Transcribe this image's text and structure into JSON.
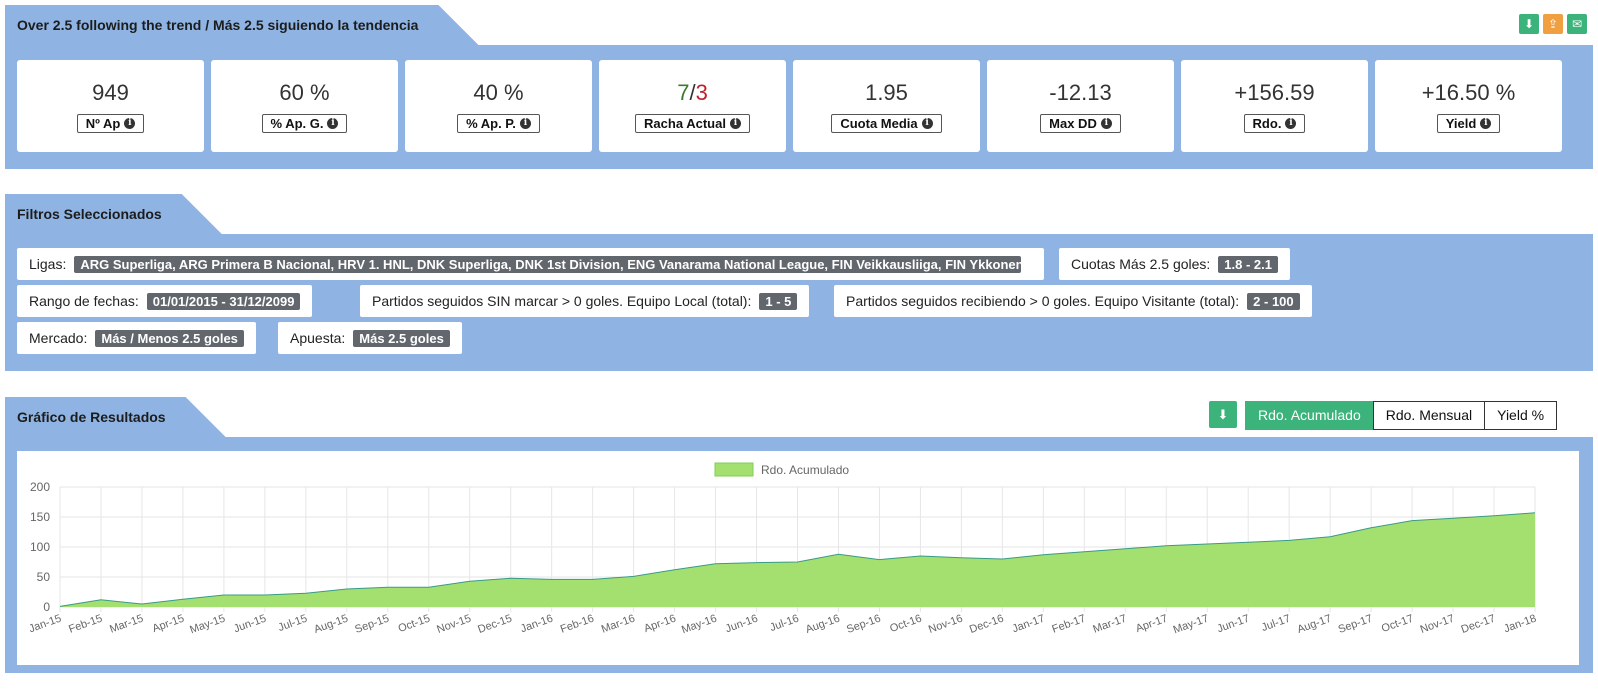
{
  "panel1": {
    "title": "Over 2.5 following the trend / Más 2.5 siguiendo la tendencia",
    "icons": [
      "download-icon",
      "share-icon",
      "envelope-icon"
    ],
    "stats": [
      {
        "value": "949",
        "label": "Nº Ap"
      },
      {
        "value": "60 %",
        "label": "% Ap. G."
      },
      {
        "value": "40 %",
        "label": "% Ap. P."
      },
      {
        "value_win": "7",
        "value_sep": "/",
        "value_loss": "3",
        "label": "Racha Actual"
      },
      {
        "value": "1.95",
        "label": "Cuota Media"
      },
      {
        "value": "-12.13",
        "label": "Max DD"
      },
      {
        "value": "+156.59",
        "label": "Rdo."
      },
      {
        "value": "+16.50 %",
        "label": "Yield"
      }
    ]
  },
  "panel2": {
    "title": "Filtros Seleccionados",
    "filters": [
      {
        "label": "Ligas:",
        "value": "ARG Superliga, ARG Primera B Nacional, HRV 1. HNL, DNK Superliga, DNK 1st Division, ENG Vanarama National League, FIN Veikkausliiga, FIN Ykkonen ..."
      },
      {
        "label": "Cuotas Más 2.5 goles:",
        "value": "1.8 - 2.1"
      },
      {
        "label": "Rango de fechas:",
        "value": "01/01/2015 - 31/12/2099"
      },
      {
        "label": "Partidos seguidos SIN marcar > 0 goles. Equipo Local (total):",
        "value": "1 - 5"
      },
      {
        "label": "Partidos seguidos recibiendo > 0 goles. Equipo Visitante (total):",
        "value": "2 - 100"
      },
      {
        "label": "Mercado:",
        "value": "Más / Menos 2.5 goles"
      },
      {
        "label": "Apuesta:",
        "value": "Más 2.5 goles"
      }
    ]
  },
  "panel3": {
    "title": "Gráfico de Resultados",
    "buttons": [
      "Rdo. Acumulado",
      "Rdo. Mensual",
      "Yield %"
    ],
    "active_button": "Rdo. Acumulado"
  },
  "colors": {
    "panel_blue": "#8fb4e3",
    "accent_green": "#3cb37a",
    "share_orange": "#f0a040",
    "area_fill": "#a3e070",
    "area_line": "#3a9a86",
    "positive": "#3a7d2c",
    "negative": "#c3202b"
  },
  "chart_data": {
    "type": "area",
    "legend": [
      "Rdo. Acumulado"
    ],
    "legend_position": "top-center",
    "grid": true,
    "ylim": [
      0,
      200
    ],
    "yticks": [
      0,
      50,
      100,
      150,
      200
    ],
    "x": [
      "Jan-15",
      "Feb-15",
      "Mar-15",
      "Apr-15",
      "May-15",
      "Jun-15",
      "Jul-15",
      "Aug-15",
      "Sep-15",
      "Oct-15",
      "Nov-15",
      "Dec-15",
      "Jan-16",
      "Feb-16",
      "Mar-16",
      "Apr-16",
      "May-16",
      "Jun-16",
      "Jul-16",
      "Aug-16",
      "Sep-16",
      "Oct-16",
      "Nov-16",
      "Dec-16",
      "Jan-17",
      "Feb-17",
      "Mar-17",
      "Apr-17",
      "May-17",
      "Jun-17",
      "Jul-17",
      "Aug-17",
      "Sep-17",
      "Oct-17",
      "Nov-17",
      "Dec-17",
      "Jan-18"
    ],
    "series": [
      {
        "name": "Rdo. Acumulado",
        "values": [
          1,
          12,
          5,
          13,
          20,
          20,
          23,
          30,
          33,
          33,
          43,
          48,
          46,
          46,
          51,
          62,
          72,
          74,
          75,
          88,
          79,
          85,
          82,
          80,
          87,
          92,
          97,
          102,
          105,
          108,
          111,
          117,
          132,
          144,
          148,
          152,
          157
        ]
      }
    ]
  }
}
